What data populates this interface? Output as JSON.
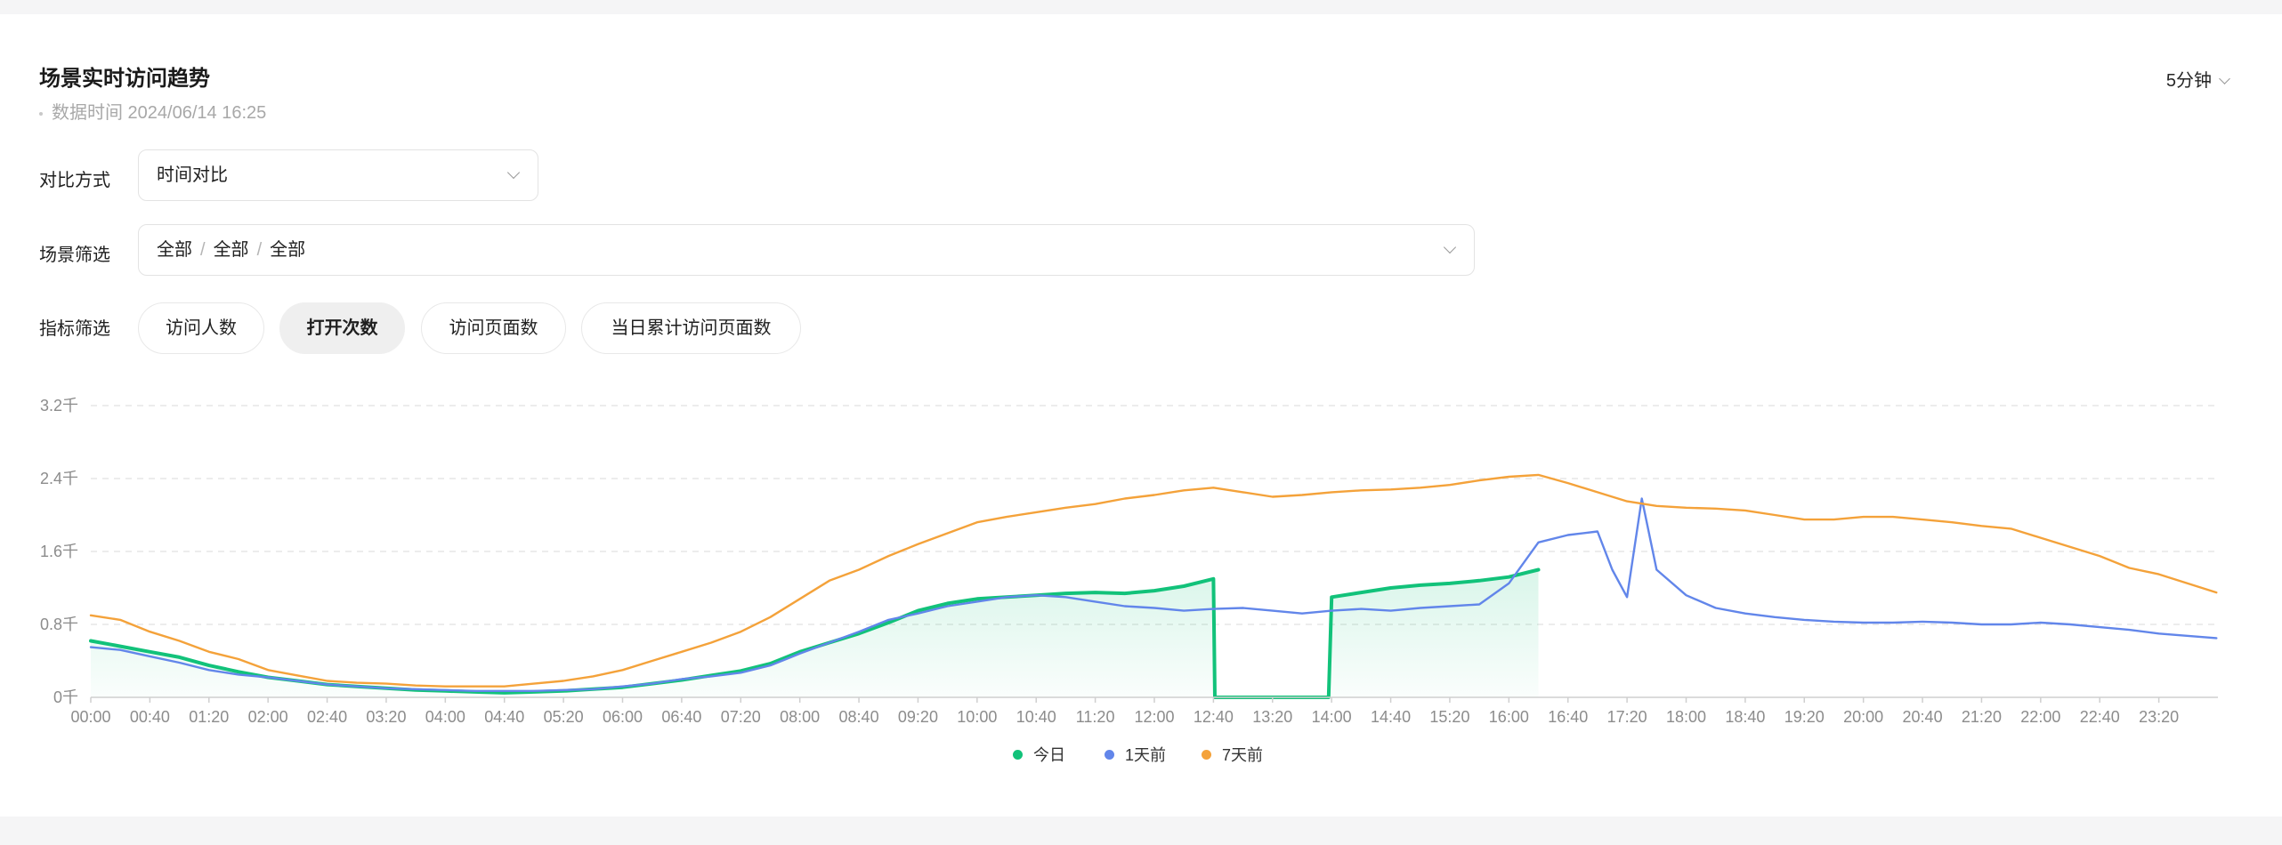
{
  "header": {
    "title": "场景实时访问趋势",
    "data_time": "数据时间 2024/06/14 16:25",
    "interval": "5分钟"
  },
  "filters": {
    "compare_label": "对比方式",
    "compare_value": "时间对比",
    "scene_label": "场景筛选",
    "scene_levels": [
      "全部",
      "全部",
      "全部"
    ],
    "scene_separator": "/",
    "metric_label": "指标筛选",
    "metrics": [
      "访问人数",
      "打开次数",
      "访问页面数",
      "当日累计访问页面数"
    ],
    "active_metric": "打开次数"
  },
  "colors": {
    "today": "#12c27a",
    "day1": "#6286ea",
    "day7": "#f4a23a",
    "grid": "#e6e6e6"
  },
  "chart_data": {
    "type": "line",
    "y_ticks": [
      "0千",
      "0.8千",
      "1.6千",
      "2.4千",
      "3.2千"
    ],
    "ylim": [
      0,
      3.2
    ],
    "y_unit": "千",
    "x_ticks": [
      "00:00",
      "00:40",
      "01:20",
      "02:00",
      "02:40",
      "03:20",
      "04:00",
      "04:40",
      "05:20",
      "06:00",
      "06:40",
      "07:20",
      "08:00",
      "08:40",
      "09:20",
      "10:00",
      "10:40",
      "11:20",
      "12:00",
      "12:40",
      "13:20",
      "14:00",
      "14:40",
      "15:20",
      "16:00",
      "16:40",
      "17:20",
      "18:00",
      "18:40",
      "19:20",
      "20:00",
      "20:40",
      "21:20",
      "22:00",
      "22:40",
      "23:20"
    ],
    "grid": true,
    "legend_position": "bottom",
    "series": [
      {
        "name": "今日",
        "color_key": "today",
        "area": true,
        "points": [
          [
            "00:00",
            0.62
          ],
          [
            "00:20",
            0.56
          ],
          [
            "00:40",
            0.5
          ],
          [
            "01:00",
            0.44
          ],
          [
            "01:20",
            0.35
          ],
          [
            "01:40",
            0.28
          ],
          [
            "02:00",
            0.22
          ],
          [
            "02:20",
            0.18
          ],
          [
            "02:40",
            0.14
          ],
          [
            "03:00",
            0.12
          ],
          [
            "03:20",
            0.1
          ],
          [
            "03:40",
            0.08
          ],
          [
            "04:00",
            0.07
          ],
          [
            "04:20",
            0.06
          ],
          [
            "04:40",
            0.05
          ],
          [
            "05:00",
            0.06
          ],
          [
            "05:20",
            0.07
          ],
          [
            "05:40",
            0.09
          ],
          [
            "06:00",
            0.11
          ],
          [
            "06:20",
            0.15
          ],
          [
            "06:40",
            0.19
          ],
          [
            "07:00",
            0.24
          ],
          [
            "07:20",
            0.29
          ],
          [
            "07:40",
            0.37
          ],
          [
            "08:00",
            0.5
          ],
          [
            "08:20",
            0.6
          ],
          [
            "08:40",
            0.7
          ],
          [
            "09:00",
            0.82
          ],
          [
            "09:20",
            0.95
          ],
          [
            "09:40",
            1.03
          ],
          [
            "10:00",
            1.08
          ],
          [
            "10:20",
            1.1
          ],
          [
            "10:40",
            1.12
          ],
          [
            "11:00",
            1.14
          ],
          [
            "11:20",
            1.15
          ],
          [
            "11:40",
            1.14
          ],
          [
            "12:00",
            1.17
          ],
          [
            "12:20",
            1.22
          ],
          [
            "12:40",
            1.3
          ],
          [
            "12:41",
            0.0
          ],
          [
            "13:00",
            0.0
          ],
          [
            "13:20",
            0.0
          ],
          [
            "13:40",
            0.0
          ],
          [
            "13:58",
            0.0
          ],
          [
            "14:00",
            1.1
          ],
          [
            "14:20",
            1.15
          ],
          [
            "14:40",
            1.2
          ],
          [
            "15:00",
            1.23
          ],
          [
            "15:20",
            1.25
          ],
          [
            "15:40",
            1.28
          ],
          [
            "16:00",
            1.32
          ],
          [
            "16:20",
            1.4
          ]
        ]
      },
      {
        "name": "1天前",
        "color_key": "day1",
        "area": false,
        "points": [
          [
            "00:00",
            0.55
          ],
          [
            "00:20",
            0.52
          ],
          [
            "00:40",
            0.45
          ],
          [
            "01:00",
            0.38
          ],
          [
            "01:20",
            0.3
          ],
          [
            "01:40",
            0.25
          ],
          [
            "02:00",
            0.22
          ],
          [
            "02:20",
            0.18
          ],
          [
            "02:40",
            0.14
          ],
          [
            "03:00",
            0.12
          ],
          [
            "03:20",
            0.1
          ],
          [
            "03:40",
            0.09
          ],
          [
            "04:00",
            0.08
          ],
          [
            "04:20",
            0.07
          ],
          [
            "04:40",
            0.07
          ],
          [
            "05:00",
            0.07
          ],
          [
            "05:20",
            0.08
          ],
          [
            "05:40",
            0.09
          ],
          [
            "06:00",
            0.12
          ],
          [
            "06:20",
            0.15
          ],
          [
            "06:40",
            0.2
          ],
          [
            "07:00",
            0.23
          ],
          [
            "07:20",
            0.27
          ],
          [
            "07:40",
            0.35
          ],
          [
            "08:00",
            0.48
          ],
          [
            "08:20",
            0.6
          ],
          [
            "08:40",
            0.72
          ],
          [
            "09:00",
            0.85
          ],
          [
            "09:20",
            0.92
          ],
          [
            "09:40",
            1.0
          ],
          [
            "10:00",
            1.05
          ],
          [
            "10:20",
            1.1
          ],
          [
            "10:40",
            1.12
          ],
          [
            "11:00",
            1.1
          ],
          [
            "11:20",
            1.05
          ],
          [
            "11:40",
            1.0
          ],
          [
            "12:00",
            0.98
          ],
          [
            "12:20",
            0.95
          ],
          [
            "12:40",
            0.97
          ],
          [
            "13:00",
            0.98
          ],
          [
            "13:20",
            0.95
          ],
          [
            "13:40",
            0.92
          ],
          [
            "14:00",
            0.95
          ],
          [
            "14:20",
            0.97
          ],
          [
            "14:40",
            0.95
          ],
          [
            "15:00",
            0.98
          ],
          [
            "15:20",
            1.0
          ],
          [
            "15:40",
            1.02
          ],
          [
            "16:00",
            1.25
          ],
          [
            "16:20",
            1.7
          ],
          [
            "16:40",
            1.78
          ],
          [
            "17:00",
            1.82
          ],
          [
            "17:10",
            1.4
          ],
          [
            "17:20",
            1.1
          ],
          [
            "17:30",
            2.18
          ],
          [
            "17:40",
            1.4
          ],
          [
            "18:00",
            1.12
          ],
          [
            "18:20",
            0.98
          ],
          [
            "18:40",
            0.92
          ],
          [
            "19:00",
            0.88
          ],
          [
            "19:20",
            0.85
          ],
          [
            "19:40",
            0.83
          ],
          [
            "20:00",
            0.82
          ],
          [
            "20:20",
            0.82
          ],
          [
            "20:40",
            0.83
          ],
          [
            "21:00",
            0.82
          ],
          [
            "21:20",
            0.8
          ],
          [
            "21:40",
            0.8
          ],
          [
            "22:00",
            0.82
          ],
          [
            "22:20",
            0.8
          ],
          [
            "22:40",
            0.77
          ],
          [
            "23:00",
            0.74
          ],
          [
            "23:20",
            0.7
          ],
          [
            "23:59",
            0.65
          ]
        ]
      },
      {
        "name": "7天前",
        "color_key": "day7",
        "area": false,
        "points": [
          [
            "00:00",
            0.9
          ],
          [
            "00:20",
            0.85
          ],
          [
            "00:40",
            0.72
          ],
          [
            "01:00",
            0.62
          ],
          [
            "01:20",
            0.5
          ],
          [
            "01:40",
            0.42
          ],
          [
            "02:00",
            0.3
          ],
          [
            "02:20",
            0.24
          ],
          [
            "02:40",
            0.18
          ],
          [
            "03:00",
            0.16
          ],
          [
            "03:20",
            0.15
          ],
          [
            "03:40",
            0.13
          ],
          [
            "04:00",
            0.12
          ],
          [
            "04:20",
            0.12
          ],
          [
            "04:40",
            0.12
          ],
          [
            "05:00",
            0.15
          ],
          [
            "05:20",
            0.18
          ],
          [
            "05:40",
            0.23
          ],
          [
            "06:00",
            0.3
          ],
          [
            "06:20",
            0.4
          ],
          [
            "06:40",
            0.5
          ],
          [
            "07:00",
            0.6
          ],
          [
            "07:20",
            0.72
          ],
          [
            "07:40",
            0.88
          ],
          [
            "08:00",
            1.08
          ],
          [
            "08:20",
            1.28
          ],
          [
            "08:40",
            1.4
          ],
          [
            "09:00",
            1.55
          ],
          [
            "09:20",
            1.68
          ],
          [
            "09:40",
            1.8
          ],
          [
            "10:00",
            1.92
          ],
          [
            "10:20",
            1.98
          ],
          [
            "10:40",
            2.03
          ],
          [
            "11:00",
            2.08
          ],
          [
            "11:20",
            2.12
          ],
          [
            "11:40",
            2.18
          ],
          [
            "12:00",
            2.22
          ],
          [
            "12:20",
            2.27
          ],
          [
            "12:40",
            2.3
          ],
          [
            "13:00",
            2.25
          ],
          [
            "13:20",
            2.2
          ],
          [
            "13:40",
            2.22
          ],
          [
            "14:00",
            2.25
          ],
          [
            "14:20",
            2.27
          ],
          [
            "14:40",
            2.28
          ],
          [
            "15:00",
            2.3
          ],
          [
            "15:20",
            2.33
          ],
          [
            "15:40",
            2.38
          ],
          [
            "16:00",
            2.42
          ],
          [
            "16:20",
            2.44
          ],
          [
            "16:40",
            2.35
          ],
          [
            "17:00",
            2.25
          ],
          [
            "17:20",
            2.15
          ],
          [
            "17:40",
            2.1
          ],
          [
            "18:00",
            2.08
          ],
          [
            "18:20",
            2.07
          ],
          [
            "18:40",
            2.05
          ],
          [
            "19:00",
            2.0
          ],
          [
            "19:20",
            1.95
          ],
          [
            "19:40",
            1.95
          ],
          [
            "20:00",
            1.98
          ],
          [
            "20:20",
            1.98
          ],
          [
            "20:40",
            1.95
          ],
          [
            "21:00",
            1.92
          ],
          [
            "21:20",
            1.88
          ],
          [
            "21:40",
            1.85
          ],
          [
            "22:00",
            1.75
          ],
          [
            "22:20",
            1.65
          ],
          [
            "22:40",
            1.55
          ],
          [
            "23:00",
            1.42
          ],
          [
            "23:20",
            1.35
          ],
          [
            "23:59",
            1.15
          ]
        ]
      }
    ]
  }
}
